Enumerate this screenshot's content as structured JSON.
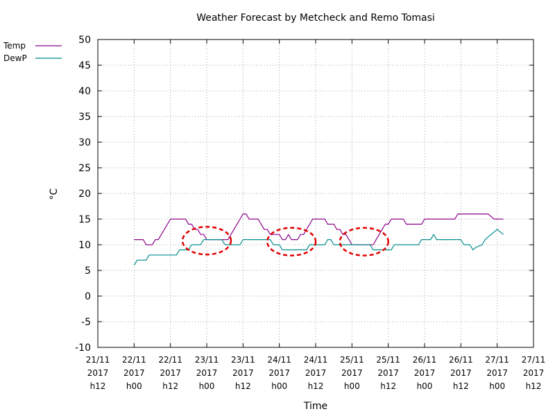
{
  "chart_data": {
    "type": "line",
    "title": "Weather Forecast by Metcheck and Remo Tomasi",
    "xlabel": "Time",
    "ylabel": "°C",
    "ylim": [
      -10,
      50
    ],
    "yticks": [
      -10,
      -5,
      0,
      5,
      10,
      15,
      20,
      25,
      30,
      35,
      40,
      45,
      50
    ],
    "xlim": [
      "21/11 2017 h12",
      "27/11 2017 h12"
    ],
    "xticks": [
      {
        "date": "21/11",
        "year": "2017",
        "hour": "h12"
      },
      {
        "date": "22/11",
        "year": "2017",
        "hour": "h00"
      },
      {
        "date": "22/11",
        "year": "2017",
        "hour": "h12"
      },
      {
        "date": "23/11",
        "year": "2017",
        "hour": "h00"
      },
      {
        "date": "23/11",
        "year": "2017",
        "hour": "h12"
      },
      {
        "date": "24/11",
        "year": "2017",
        "hour": "h00"
      },
      {
        "date": "24/11",
        "year": "2017",
        "hour": "h12"
      },
      {
        "date": "25/11",
        "year": "2017",
        "hour": "h00"
      },
      {
        "date": "25/11",
        "year": "2017",
        "hour": "h12"
      },
      {
        "date": "26/11",
        "year": "2017",
        "hour": "h00"
      },
      {
        "date": "26/11",
        "year": "2017",
        "hour": "h12"
      },
      {
        "date": "27/11",
        "year": "2017",
        "hour": "h00"
      },
      {
        "date": "27/11",
        "year": "2017",
        "hour": "h12"
      }
    ],
    "grid": true,
    "legend_placement": "top-left",
    "series": [
      {
        "name": "Temp",
        "color": "#8b008b",
        "points": [
          [
            "22/11 2017 h00",
            11
          ],
          [
            "22/11 2017 h03",
            11
          ],
          [
            "22/11 2017 h04",
            10
          ],
          [
            "22/11 2017 h06",
            10
          ],
          [
            "22/11 2017 h07",
            11
          ],
          [
            "22/11 2017 h08",
            11
          ],
          [
            "22/11 2017 h09",
            12
          ],
          [
            "22/11 2017 h10",
            13
          ],
          [
            "22/11 2017 h11",
            14
          ],
          [
            "22/11 2017 h12",
            15
          ],
          [
            "22/11 2017 h17",
            15
          ],
          [
            "22/11 2017 h18",
            14
          ],
          [
            "22/11 2017 h19",
            14
          ],
          [
            "22/11 2017 h20",
            13
          ],
          [
            "22/11 2017 h21",
            13
          ],
          [
            "22/11 2017 h22",
            12
          ],
          [
            "22/11 2017 h23",
            12
          ],
          [
            "23/11 2017 h00",
            11
          ],
          [
            "23/11 2017 h07",
            11
          ],
          [
            "23/11 2017 h08",
            12
          ],
          [
            "23/11 2017 h09",
            13
          ],
          [
            "23/11 2017 h10",
            14
          ],
          [
            "23/11 2017 h11",
            15
          ],
          [
            "23/11 2017 h12",
            16
          ],
          [
            "23/11 2017 h13",
            16
          ],
          [
            "23/11 2017 h14",
            15
          ],
          [
            "23/11 2017 h17",
            15
          ],
          [
            "23/11 2017 h18",
            14
          ],
          [
            "23/11 2017 h19",
            13
          ],
          [
            "23/11 2017 h20",
            13
          ],
          [
            "23/11 2017 h21",
            12
          ],
          [
            "23/11 2017 h23",
            12
          ],
          [
            "24/11 2017 h00",
            12
          ],
          [
            "24/11 2017 h01",
            11
          ],
          [
            "24/11 2017 h02",
            11
          ],
          [
            "24/11 2017 h03",
            12
          ],
          [
            "24/11 2017 h04",
            11
          ],
          [
            "24/11 2017 h06",
            11
          ],
          [
            "24/11 2017 h07",
            12
          ],
          [
            "24/11 2017 h08",
            12
          ],
          [
            "24/11 2017 h09",
            13
          ],
          [
            "24/11 2017 h10",
            14
          ],
          [
            "24/11 2017 h11",
            15
          ],
          [
            "24/11 2017 h15",
            15
          ],
          [
            "24/11 2017 h16",
            14
          ],
          [
            "24/11 2017 h18",
            14
          ],
          [
            "24/11 2017 h19",
            13
          ],
          [
            "24/11 2017 h20",
            13
          ],
          [
            "24/11 2017 h21",
            12
          ],
          [
            "24/11 2017 h22",
            12
          ],
          [
            "24/11 2017 h23",
            11
          ],
          [
            "25/11 2017 h00",
            10
          ],
          [
            "25/11 2017 h07",
            10
          ],
          [
            "25/11 2017 h08",
            11
          ],
          [
            "25/11 2017 h09",
            12
          ],
          [
            "25/11 2017 h10",
            13
          ],
          [
            "25/11 2017 h11",
            14
          ],
          [
            "25/11 2017 h12",
            14
          ],
          [
            "25/11 2017 h13",
            15
          ],
          [
            "25/11 2017 h17",
            15
          ],
          [
            "25/11 2017 h18",
            14
          ],
          [
            "25/11 2017 h23",
            14
          ],
          [
            "26/11 2017 h00",
            15
          ],
          [
            "26/11 2017 h10",
            15
          ],
          [
            "26/11 2017 h11",
            16
          ],
          [
            "26/11 2017 h21",
            16
          ],
          [
            "26/11 2017 h22",
            15.5
          ],
          [
            "26/11 2017 h23",
            15
          ],
          [
            "27/11 2017 h02",
            15
          ]
        ]
      },
      {
        "name": "DewP",
        "color": "#008b8b",
        "points": [
          [
            "22/11 2017 h00",
            6
          ],
          [
            "22/11 2017 h01",
            7
          ],
          [
            "22/11 2017 h04",
            7
          ],
          [
            "22/11 2017 h05",
            8
          ],
          [
            "22/11 2017 h14",
            8
          ],
          [
            "22/11 2017 h15",
            9
          ],
          [
            "22/11 2017 h18",
            9
          ],
          [
            "22/11 2017 h19",
            10
          ],
          [
            "22/11 2017 h22",
            10
          ],
          [
            "22/11 2017 h23",
            11
          ],
          [
            "23/11 2017 h05",
            11
          ],
          [
            "23/11 2017 h06",
            10
          ],
          [
            "23/11 2017 h11",
            10
          ],
          [
            "23/11 2017 h12",
            11
          ],
          [
            "23/11 2017 h21",
            11
          ],
          [
            "23/11 2017 h22",
            10
          ],
          [
            "24/11 2017 h00",
            10
          ],
          [
            "24/11 2017 h01",
            9
          ],
          [
            "24/11 2017 h09",
            9
          ],
          [
            "24/11 2017 h10",
            10
          ],
          [
            "24/11 2017 h15",
            10
          ],
          [
            "24/11 2017 h16",
            11
          ],
          [
            "24/11 2017 h17",
            11
          ],
          [
            "24/11 2017 h18",
            10
          ],
          [
            "25/11 2017 h06",
            10
          ],
          [
            "25/11 2017 h07",
            9
          ],
          [
            "25/11 2017 h13",
            9
          ],
          [
            "25/11 2017 h14",
            10
          ],
          [
            "25/11 2017 h22",
            10
          ],
          [
            "25/11 2017 h23",
            11
          ],
          [
            "26/11 2017 h02",
            11
          ],
          [
            "26/11 2017 h03",
            12
          ],
          [
            "26/11 2017 h04",
            11
          ],
          [
            "26/11 2017 h12",
            11
          ],
          [
            "26/11 2017 h13",
            10
          ],
          [
            "26/11 2017 h15",
            10
          ],
          [
            "26/11 2017 h16",
            9
          ],
          [
            "26/11 2017 h17",
            9.5
          ],
          [
            "26/11 2017 h19",
            10
          ],
          [
            "26/11 2017 h20",
            11
          ],
          [
            "26/11 2017 h22",
            12
          ],
          [
            "27/11 2017 h00",
            13
          ],
          [
            "27/11 2017 h02",
            12
          ]
        ]
      }
    ],
    "annotations": [
      {
        "shape": "ellipse",
        "style": "dashed",
        "color": "#e00000",
        "x_center": "23/11 2017 h00",
        "y_center": 10.8
      },
      {
        "shape": "ellipse",
        "style": "dashed",
        "color": "#e00000",
        "x_center": "24/11 2017 h04",
        "y_center": 10.6
      },
      {
        "shape": "ellipse",
        "style": "dashed",
        "color": "#e00000",
        "x_center": "25/11 2017 h04",
        "y_center": 10.6
      }
    ]
  }
}
